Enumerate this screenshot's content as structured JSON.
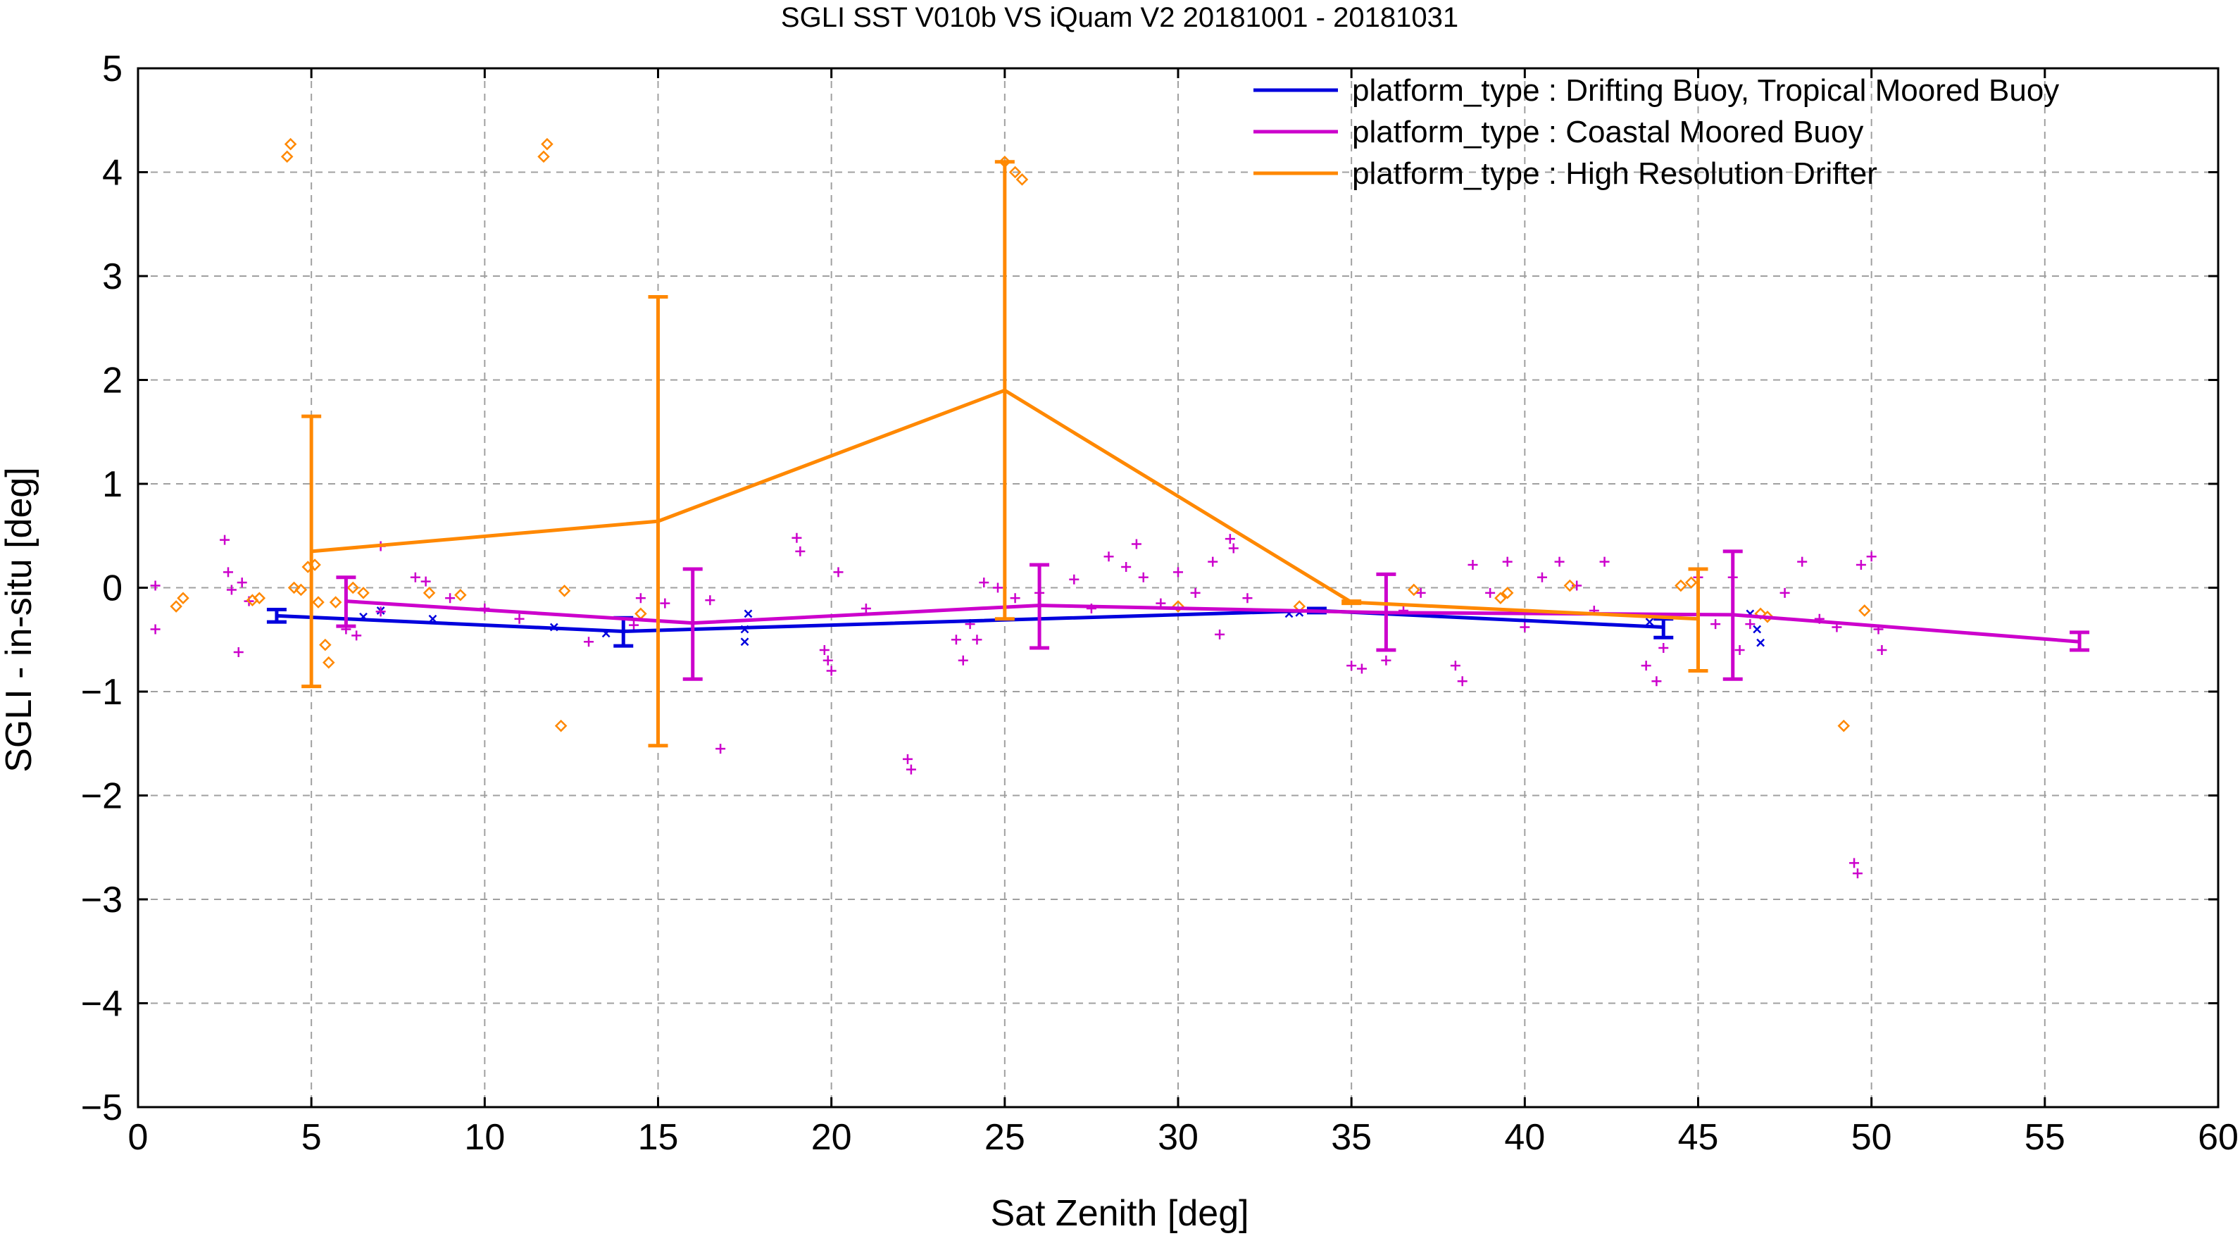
{
  "chart_data": {
    "type": "line",
    "title": "SGLI SST V010b VS iQuam V2 20181001 - 20181031",
    "xlabel": "Sat Zenith [deg]",
    "ylabel": "SGLI - in-situ [deg]",
    "xlim": [
      0,
      60
    ],
    "ylim": [
      -5,
      5
    ],
    "x_ticks": [
      0,
      5,
      10,
      15,
      20,
      25,
      30,
      35,
      40,
      45,
      50,
      55,
      60
    ],
    "y_ticks": [
      -5,
      -4,
      -3,
      -2,
      -1,
      0,
      1,
      2,
      3,
      4,
      5
    ],
    "grid": true,
    "legend_position": "top-right",
    "series": [
      {
        "name": "platform_type : Drifting Buoy, Tropical Moored Buoy",
        "color": "#0000dd",
        "marker": "x",
        "line": [
          {
            "x": 4,
            "y": -0.27,
            "err_low": -0.33,
            "err_high": -0.21
          },
          {
            "x": 14,
            "y": -0.42,
            "err_low": -0.56,
            "err_high": -0.29
          },
          {
            "x": 34,
            "y": -0.22,
            "err_low": -0.24,
            "err_high": -0.2
          },
          {
            "x": 44,
            "y": -0.38,
            "err_low": -0.48,
            "err_high": -0.3
          }
        ],
        "points": [
          [
            6.5,
            -0.28
          ],
          [
            7,
            -0.22
          ],
          [
            8.5,
            -0.3
          ],
          [
            12,
            -0.38
          ],
          [
            13.5,
            -0.44
          ],
          [
            17.5,
            -0.4
          ],
          [
            17.5,
            -0.52
          ],
          [
            17.6,
            -0.25
          ],
          [
            33.2,
            -0.25
          ],
          [
            33.5,
            -0.24
          ],
          [
            43.6,
            -0.33
          ],
          [
            46.5,
            -0.25
          ],
          [
            46.7,
            -0.4
          ],
          [
            46.8,
            -0.53
          ]
        ]
      },
      {
        "name": "platform_type : Coastal Moored Buoy",
        "color": "#cc00cc",
        "marker": "+",
        "line": [
          {
            "x": 6,
            "y": -0.13,
            "err_low": -0.37,
            "err_high": 0.1
          },
          {
            "x": 16,
            "y": -0.34,
            "err_low": -0.88,
            "err_high": 0.18
          },
          {
            "x": 26,
            "y": -0.17,
            "err_low": -0.58,
            "err_high": 0.22
          },
          {
            "x": 36,
            "y": -0.24,
            "err_low": -0.6,
            "err_high": 0.13
          },
          {
            "x": 46,
            "y": -0.26,
            "err_low": -0.88,
            "err_high": 0.35
          },
          {
            "x": 56,
            "y": -0.52,
            "err_low": -0.6,
            "err_high": -0.43
          }
        ],
        "points": [
          [
            0.5,
            0.02
          ],
          [
            0.5,
            -0.4
          ],
          [
            2.5,
            0.46
          ],
          [
            2.6,
            0.15
          ],
          [
            2.7,
            -0.02
          ],
          [
            2.9,
            -0.62
          ],
          [
            3.0,
            0.05
          ],
          [
            3.2,
            -0.13
          ],
          [
            6.0,
            -0.4
          ],
          [
            6.3,
            -0.46
          ],
          [
            7.0,
            0.4
          ],
          [
            7.0,
            -0.23
          ],
          [
            8.0,
            0.1
          ],
          [
            8.3,
            0.06
          ],
          [
            9.0,
            -0.1
          ],
          [
            10.0,
            -0.2
          ],
          [
            11.0,
            -0.3
          ],
          [
            13.0,
            -0.52
          ],
          [
            14.3,
            -0.36
          ],
          [
            14.5,
            -0.1
          ],
          [
            15.2,
            -0.15
          ],
          [
            16.5,
            -0.12
          ],
          [
            16.8,
            -1.55
          ],
          [
            19.0,
            0.48
          ],
          [
            19.1,
            0.35
          ],
          [
            19.8,
            -0.6
          ],
          [
            19.9,
            -0.7
          ],
          [
            20.0,
            -0.8
          ],
          [
            20.2,
            0.15
          ],
          [
            21.0,
            -0.2
          ],
          [
            22.2,
            -1.65
          ],
          [
            22.3,
            -1.75
          ],
          [
            23.6,
            -0.5
          ],
          [
            23.8,
            -0.7
          ],
          [
            24.0,
            -0.35
          ],
          [
            24.2,
            -0.5
          ],
          [
            24.4,
            0.05
          ],
          [
            24.8,
            0.0
          ],
          [
            25.3,
            -0.1
          ],
          [
            26.0,
            -0.05
          ],
          [
            27.0,
            0.08
          ],
          [
            27.5,
            -0.2
          ],
          [
            28.0,
            0.3
          ],
          [
            28.5,
            0.2
          ],
          [
            28.8,
            0.42
          ],
          [
            29.0,
            0.1
          ],
          [
            29.5,
            -0.15
          ],
          [
            30.0,
            0.15
          ],
          [
            30.5,
            -0.05
          ],
          [
            31.0,
            0.25
          ],
          [
            31.2,
            -0.45
          ],
          [
            31.5,
            0.47
          ],
          [
            31.6,
            0.38
          ],
          [
            32.0,
            -0.1
          ],
          [
            35.0,
            -0.75
          ],
          [
            35.3,
            -0.78
          ],
          [
            36.0,
            -0.7
          ],
          [
            36.5,
            -0.22
          ],
          [
            37.0,
            -0.05
          ],
          [
            38.0,
            -0.75
          ],
          [
            38.2,
            -0.9
          ],
          [
            38.5,
            0.22
          ],
          [
            39.0,
            -0.05
          ],
          [
            39.5,
            0.25
          ],
          [
            40.0,
            -0.38
          ],
          [
            40.5,
            0.1
          ],
          [
            41.0,
            0.25
          ],
          [
            41.5,
            0.02
          ],
          [
            42.0,
            -0.22
          ],
          [
            42.3,
            0.25
          ],
          [
            43.5,
            -0.75
          ],
          [
            43.8,
            -0.9
          ],
          [
            44.0,
            -0.58
          ],
          [
            45.0,
            0.1
          ],
          [
            45.5,
            -0.35
          ],
          [
            46.0,
            0.1
          ],
          [
            46.2,
            -0.6
          ],
          [
            46.5,
            -0.35
          ],
          [
            47.5,
            -0.05
          ],
          [
            48.0,
            0.25
          ],
          [
            48.5,
            -0.3
          ],
          [
            49.0,
            -0.38
          ],
          [
            49.5,
            -2.65
          ],
          [
            49.6,
            -2.75
          ],
          [
            49.7,
            0.22
          ],
          [
            50.0,
            0.3
          ],
          [
            50.2,
            -0.4
          ],
          [
            50.3,
            -0.6
          ]
        ]
      },
      {
        "name": "platform_type : High Resolution Drifter",
        "color": "#ff8800",
        "marker": "diamond",
        "line": [
          {
            "x": 5,
            "y": 0.35,
            "err_low": -0.95,
            "err_high": 1.65
          },
          {
            "x": 15,
            "y": 0.64,
            "err_low": -1.52,
            "err_high": 2.8
          },
          {
            "x": 25,
            "y": 1.9,
            "err_low": -0.3,
            "err_high": 4.1
          },
          {
            "x": 35,
            "y": -0.14,
            "err_low": -0.15,
            "err_high": -0.13
          },
          {
            "x": 45,
            "y": -0.3,
            "err_low": -0.8,
            "err_high": 0.18
          }
        ],
        "points": [
          [
            1.1,
            -0.18
          ],
          [
            1.3,
            -0.1
          ],
          [
            3.3,
            -0.12
          ],
          [
            3.5,
            -0.1
          ],
          [
            4.3,
            4.15
          ],
          [
            4.4,
            4.27
          ],
          [
            4.5,
            0.0
          ],
          [
            4.7,
            -0.02
          ],
          [
            4.9,
            0.2
          ],
          [
            5.1,
            0.22
          ],
          [
            5.2,
            -0.14
          ],
          [
            5.4,
            -0.55
          ],
          [
            5.5,
            -0.72
          ],
          [
            5.7,
            -0.14
          ],
          [
            6.2,
            0.0
          ],
          [
            6.5,
            -0.05
          ],
          [
            8.4,
            -0.05
          ],
          [
            9.3,
            -0.07
          ],
          [
            11.7,
            4.15
          ],
          [
            11.8,
            4.27
          ],
          [
            12.2,
            -1.33
          ],
          [
            12.3,
            -0.03
          ],
          [
            14.5,
            -0.25
          ],
          [
            25.0,
            4.1
          ],
          [
            25.3,
            4.0
          ],
          [
            25.5,
            3.93
          ],
          [
            30.0,
            -0.18
          ],
          [
            33.5,
            -0.18
          ],
          [
            36.8,
            -0.02
          ],
          [
            39.3,
            -0.1
          ],
          [
            39.5,
            -0.05
          ],
          [
            41.3,
            0.02
          ],
          [
            44.5,
            0.02
          ],
          [
            44.8,
            0.05
          ],
          [
            46.8,
            -0.25
          ],
          [
            47.0,
            -0.28
          ],
          [
            49.2,
            -1.33
          ],
          [
            49.8,
            -0.22
          ]
        ]
      }
    ]
  }
}
